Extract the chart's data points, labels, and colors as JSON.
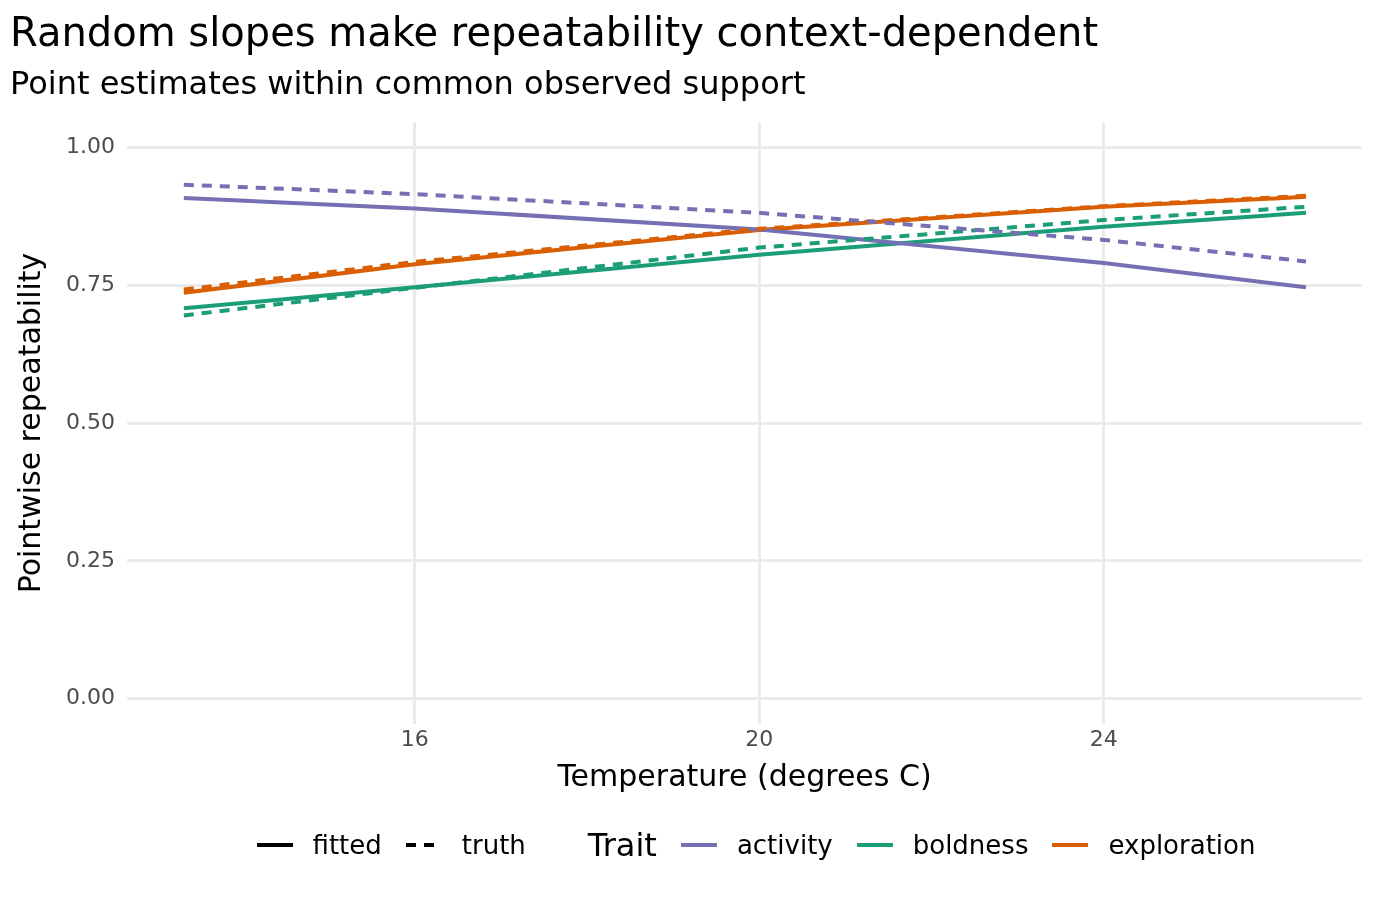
{
  "chart_data": {
    "type": "line",
    "title": "Random slopes make repeatability context-dependent",
    "subtitle": "Point estimates within common observed support",
    "xlabel": "Temperature (degrees C)",
    "ylabel": "Pointwise repeatability",
    "legend_title": "Trait",
    "x": [
      13.32,
      16,
      20,
      24,
      26.35
    ],
    "series": [
      {
        "name": "fitted",
        "color": "#000000",
        "line_style": "solid",
        "values": [
          null,
          null,
          null,
          null,
          null
        ]
      },
      {
        "name": "truth",
        "color": "#000000",
        "line_style": "dashed",
        "values": [
          null,
          null,
          null,
          null,
          null
        ]
      },
      {
        "color": "#7570b3",
        "line_style": "dashed",
        "values": [
          0.932,
          0.915,
          0.881,
          0.832,
          0.793
        ]
      },
      {
        "color": "#1b9e77",
        "line_style": "dashed",
        "values": [
          0.695,
          0.745,
          0.818,
          0.868,
          0.892
        ]
      },
      {
        "color": "#d95f02",
        "line_style": "dashed",
        "values": [
          0.742,
          0.792,
          0.852,
          0.893,
          0.912
        ]
      },
      {
        "name": "activity",
        "color": "#7570b3",
        "line_style": "solid",
        "values": [
          0.908,
          0.889,
          0.851,
          0.79,
          0.746
        ]
      },
      {
        "name": "boldness",
        "color": "#1b9e77",
        "line_style": "solid",
        "values": [
          0.708,
          0.746,
          0.805,
          0.856,
          0.881
        ]
      },
      {
        "name": "exploration",
        "color": "#d95f02",
        "line_style": "solid",
        "values": [
          0.736,
          0.788,
          0.85,
          0.892,
          0.91
        ]
      }
    ],
    "xlim": [
      12.66,
      27.0
    ],
    "xticks": [
      16,
      20,
      24
    ],
    "ylim": [
      -0.045,
      1.045
    ],
    "yticks": [
      {
        "value": 0,
        "label": "0.00"
      },
      {
        "value": 0.25,
        "label": "0.25"
      },
      {
        "value": 0.5,
        "label": "0.50"
      },
      {
        "value": 0.75,
        "label": "0.75"
      },
      {
        "value": 1,
        "label": "1.00"
      }
    ],
    "grid": true,
    "legend": "bottom",
    "marker": "none"
  }
}
